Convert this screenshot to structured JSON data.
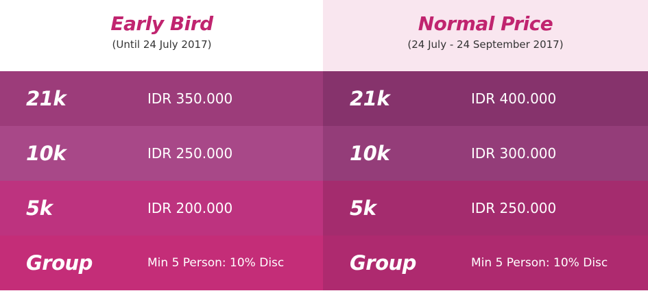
{
  "columns": [
    {
      "title": "Early Bird",
      "subtitle": "(Until 24 July 2017)",
      "rows": [
        {
          "category": "21k",
          "price": "IDR 350.000",
          "bg": "#9c3c7a"
        },
        {
          "category": "10k",
          "price": "IDR 250.000",
          "bg": "#a84888"
        },
        {
          "category": "5k",
          "price": "IDR 200.000",
          "bg": "#bd337f"
        },
        {
          "category": "Group",
          "price": "Min 5 Person: 10% Disc",
          "bg": "#c42d78"
        }
      ]
    },
    {
      "title": "Normal Price",
      "subtitle": "(24 July - 24 September 2017)",
      "rows": [
        {
          "category": "21k",
          "price": "IDR 400.000",
          "bg": "#86336c"
        },
        {
          "category": "10k",
          "price": "IDR 300.000",
          "bg": "#943d79"
        },
        {
          "category": "5k",
          "price": "IDR 250.000",
          "bg": "#a42c6e"
        },
        {
          "category": "Group",
          "price": "Min 5 Person: 10% Disc",
          "bg": "#ae2a6f"
        }
      ]
    }
  ],
  "colors": {
    "title": "#c0246f",
    "subtitle": "#333333",
    "header_left_bg": "#ffffff",
    "header_right_bg": "#f9e6ef",
    "row_text": "#ffffff"
  }
}
